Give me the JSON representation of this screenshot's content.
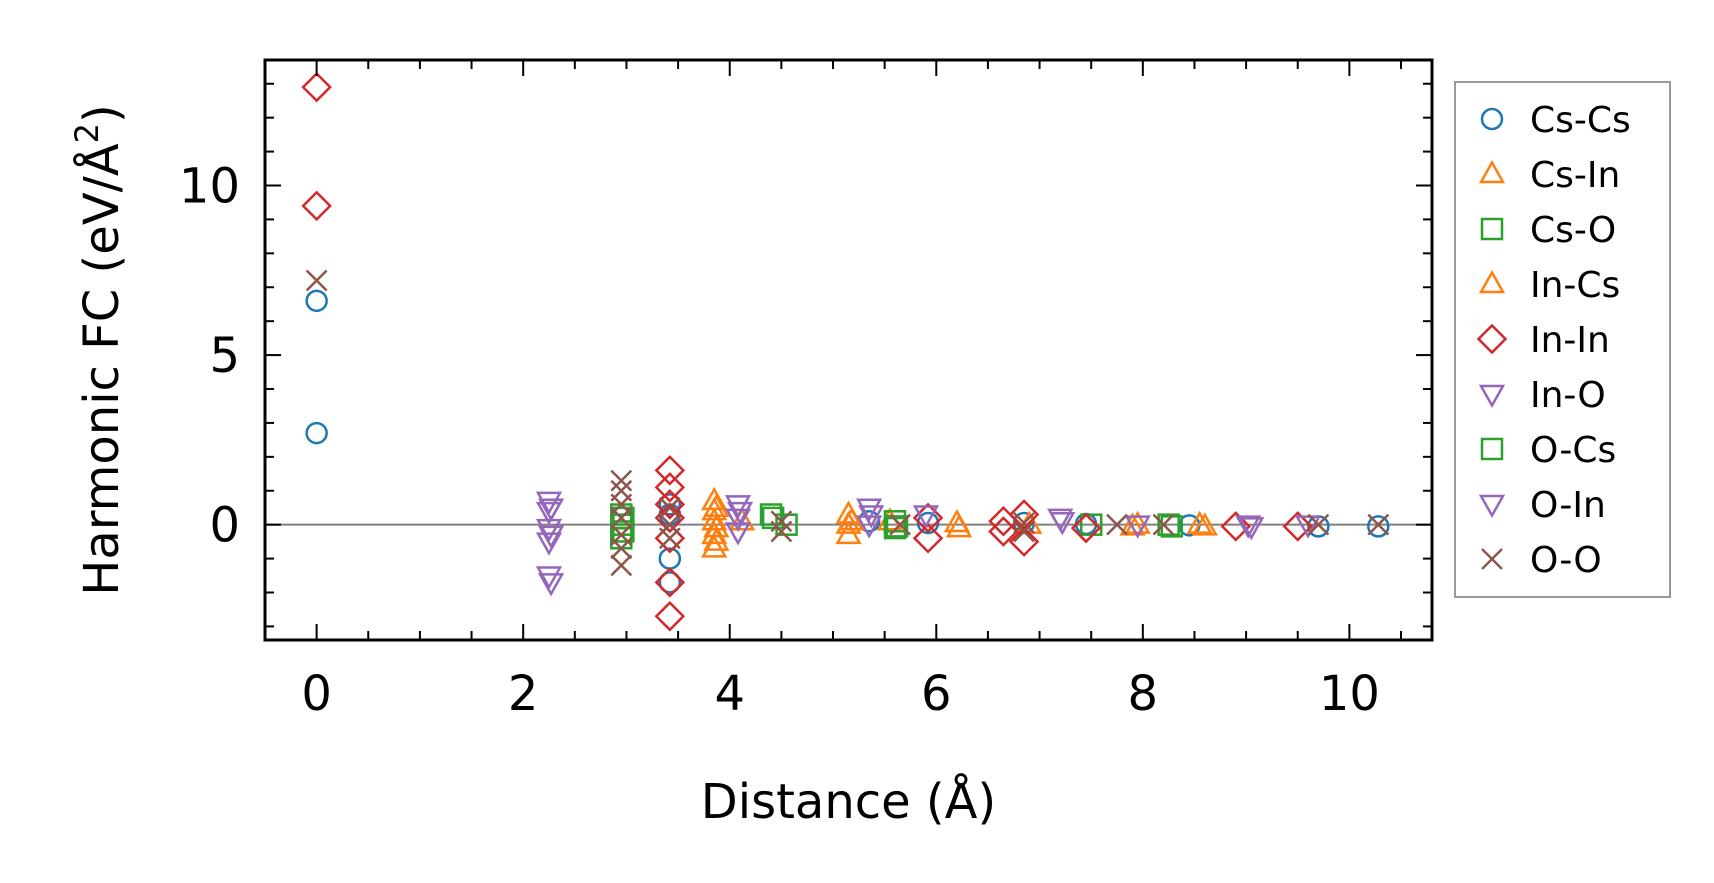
{
  "chart_data": {
    "type": "scatter",
    "xlabel": "Distance (Å)",
    "ylabel_main": "Harmonic FC (eV/Å",
    "ylabel_sup": "2",
    "ylabel_end": ")",
    "xlim": [
      -0.5,
      10.8
    ],
    "ylim": [
      -3.4,
      13.7
    ],
    "x_ticks": [
      0,
      2,
      4,
      6,
      8,
      10
    ],
    "x_tick_labels": [
      "0",
      "2",
      "4",
      "6",
      "8",
      "10"
    ],
    "y_ticks": [
      0,
      5,
      10
    ],
    "y_tick_labels": [
      "0",
      "5",
      "10"
    ],
    "zero_line": true,
    "grid": false,
    "legend_position": "outside-right",
    "series": [
      {
        "name": "Cs-Cs",
        "color": "#1f77b4",
        "marker": "circle",
        "points": [
          [
            0,
            6.6
          ],
          [
            0,
            2.7
          ],
          [
            3.42,
            0.6
          ],
          [
            3.42,
            -1.0
          ],
          [
            3.42,
            -1.7
          ],
          [
            3.42,
            0.3
          ],
          [
            5.35,
            0.1
          ],
          [
            5.92,
            0.05
          ],
          [
            6.85,
            0.05
          ],
          [
            7.45,
            0.02
          ],
          [
            8.45,
            -0.02
          ],
          [
            9.7,
            -0.05
          ],
          [
            10.28,
            -0.05
          ]
        ]
      },
      {
        "name": "Cs-In",
        "color": "#ff7f0e",
        "marker": "triangle-up",
        "points": [
          [
            3.85,
            0.7
          ],
          [
            3.85,
            0.4
          ],
          [
            3.85,
            0.1
          ],
          [
            3.85,
            -0.3
          ],
          [
            3.85,
            -0.7
          ],
          [
            4.12,
            0.1
          ],
          [
            5.15,
            0.3
          ],
          [
            5.15,
            0.0
          ],
          [
            5.15,
            -0.3
          ],
          [
            5.55,
            0.1
          ],
          [
            6.2,
            0.05
          ],
          [
            6.9,
            0.0
          ],
          [
            7.9,
            -0.05
          ],
          [
            8.55,
            0.0
          ]
        ]
      },
      {
        "name": "Cs-O",
        "color": "#2ca02c",
        "marker": "square",
        "points": [
          [
            2.95,
            0.3
          ],
          [
            2.95,
            0.0
          ],
          [
            2.95,
            -0.4
          ],
          [
            4.4,
            0.3
          ],
          [
            4.55,
            0.0
          ],
          [
            5.6,
            0.1
          ],
          [
            5.6,
            -0.1
          ],
          [
            7.5,
            0.0
          ],
          [
            8.25,
            0.0
          ]
        ]
      },
      {
        "name": "In-Cs",
        "color": "#ff7f0e",
        "marker": "triangle-up",
        "points": [
          [
            3.87,
            0.5
          ],
          [
            3.87,
            -0.1
          ],
          [
            3.87,
            -0.5
          ],
          [
            5.18,
            0.1
          ],
          [
            6.22,
            -0.1
          ],
          [
            7.95,
            0.0
          ],
          [
            8.6,
            -0.05
          ]
        ]
      },
      {
        "name": "In-In",
        "color": "#d62728",
        "marker": "diamond",
        "points": [
          [
            0,
            12.9
          ],
          [
            0,
            9.4
          ],
          [
            3.42,
            1.6
          ],
          [
            3.42,
            1.1
          ],
          [
            3.42,
            0.6
          ],
          [
            3.42,
            0.2
          ],
          [
            3.42,
            -0.4
          ],
          [
            3.42,
            -1.7
          ],
          [
            3.42,
            -2.7
          ],
          [
            5.92,
            0.2
          ],
          [
            5.92,
            -0.4
          ],
          [
            6.65,
            0.1
          ],
          [
            6.65,
            -0.2
          ],
          [
            6.85,
            0.3
          ],
          [
            6.85,
            -0.5
          ],
          [
            7.45,
            -0.1
          ],
          [
            8.9,
            -0.05
          ],
          [
            9.5,
            -0.05
          ]
        ]
      },
      {
        "name": "In-O",
        "color": "#9467bd",
        "marker": "triangle-down",
        "points": [
          [
            2.25,
            0.7
          ],
          [
            2.25,
            0.4
          ],
          [
            2.25,
            -0.1
          ],
          [
            2.25,
            -0.5
          ],
          [
            2.25,
            -1.5
          ],
          [
            4.08,
            0.6
          ],
          [
            4.08,
            0.2
          ],
          [
            4.08,
            -0.2
          ],
          [
            5.35,
            0.5
          ],
          [
            5.35,
            0.0
          ],
          [
            5.9,
            0.3
          ],
          [
            7.2,
            0.2
          ],
          [
            7.95,
            0.0
          ],
          [
            9.02,
            0.0
          ],
          [
            9.6,
            0.0
          ]
        ]
      },
      {
        "name": "O-Cs",
        "color": "#2ca02c",
        "marker": "square",
        "points": [
          [
            2.97,
            0.2
          ],
          [
            2.97,
            -0.2
          ],
          [
            4.42,
            0.2
          ],
          [
            5.62,
            -0.05
          ],
          [
            8.28,
            -0.05
          ]
        ]
      },
      {
        "name": "O-In",
        "color": "#9467bd",
        "marker": "triangle-down",
        "points": [
          [
            2.27,
            0.5
          ],
          [
            2.27,
            -0.3
          ],
          [
            2.27,
            -1.7
          ],
          [
            4.1,
            0.4
          ],
          [
            5.37,
            0.3
          ],
          [
            7.22,
            0.1
          ],
          [
            9.05,
            -0.05
          ]
        ]
      },
      {
        "name": "O-O",
        "color": "#8c564b",
        "marker": "x",
        "points": [
          [
            0,
            7.2
          ],
          [
            2.95,
            1.3
          ],
          [
            2.95,
            1.0
          ],
          [
            2.95,
            0.6
          ],
          [
            2.95,
            0.2
          ],
          [
            2.95,
            -0.3
          ],
          [
            2.95,
            -0.7
          ],
          [
            2.95,
            -1.2
          ],
          [
            3.42,
            0.5
          ],
          [
            3.42,
            0.0
          ],
          [
            3.42,
            -0.4
          ],
          [
            4.5,
            0.1
          ],
          [
            4.5,
            -0.2
          ],
          [
            5.65,
            0.0
          ],
          [
            6.85,
            0.05
          ],
          [
            6.85,
            -0.2
          ],
          [
            7.75,
            0.0
          ],
          [
            8.2,
            0.0
          ],
          [
            9.7,
            0.0
          ],
          [
            10.28,
            0.0
          ]
        ]
      }
    ]
  }
}
